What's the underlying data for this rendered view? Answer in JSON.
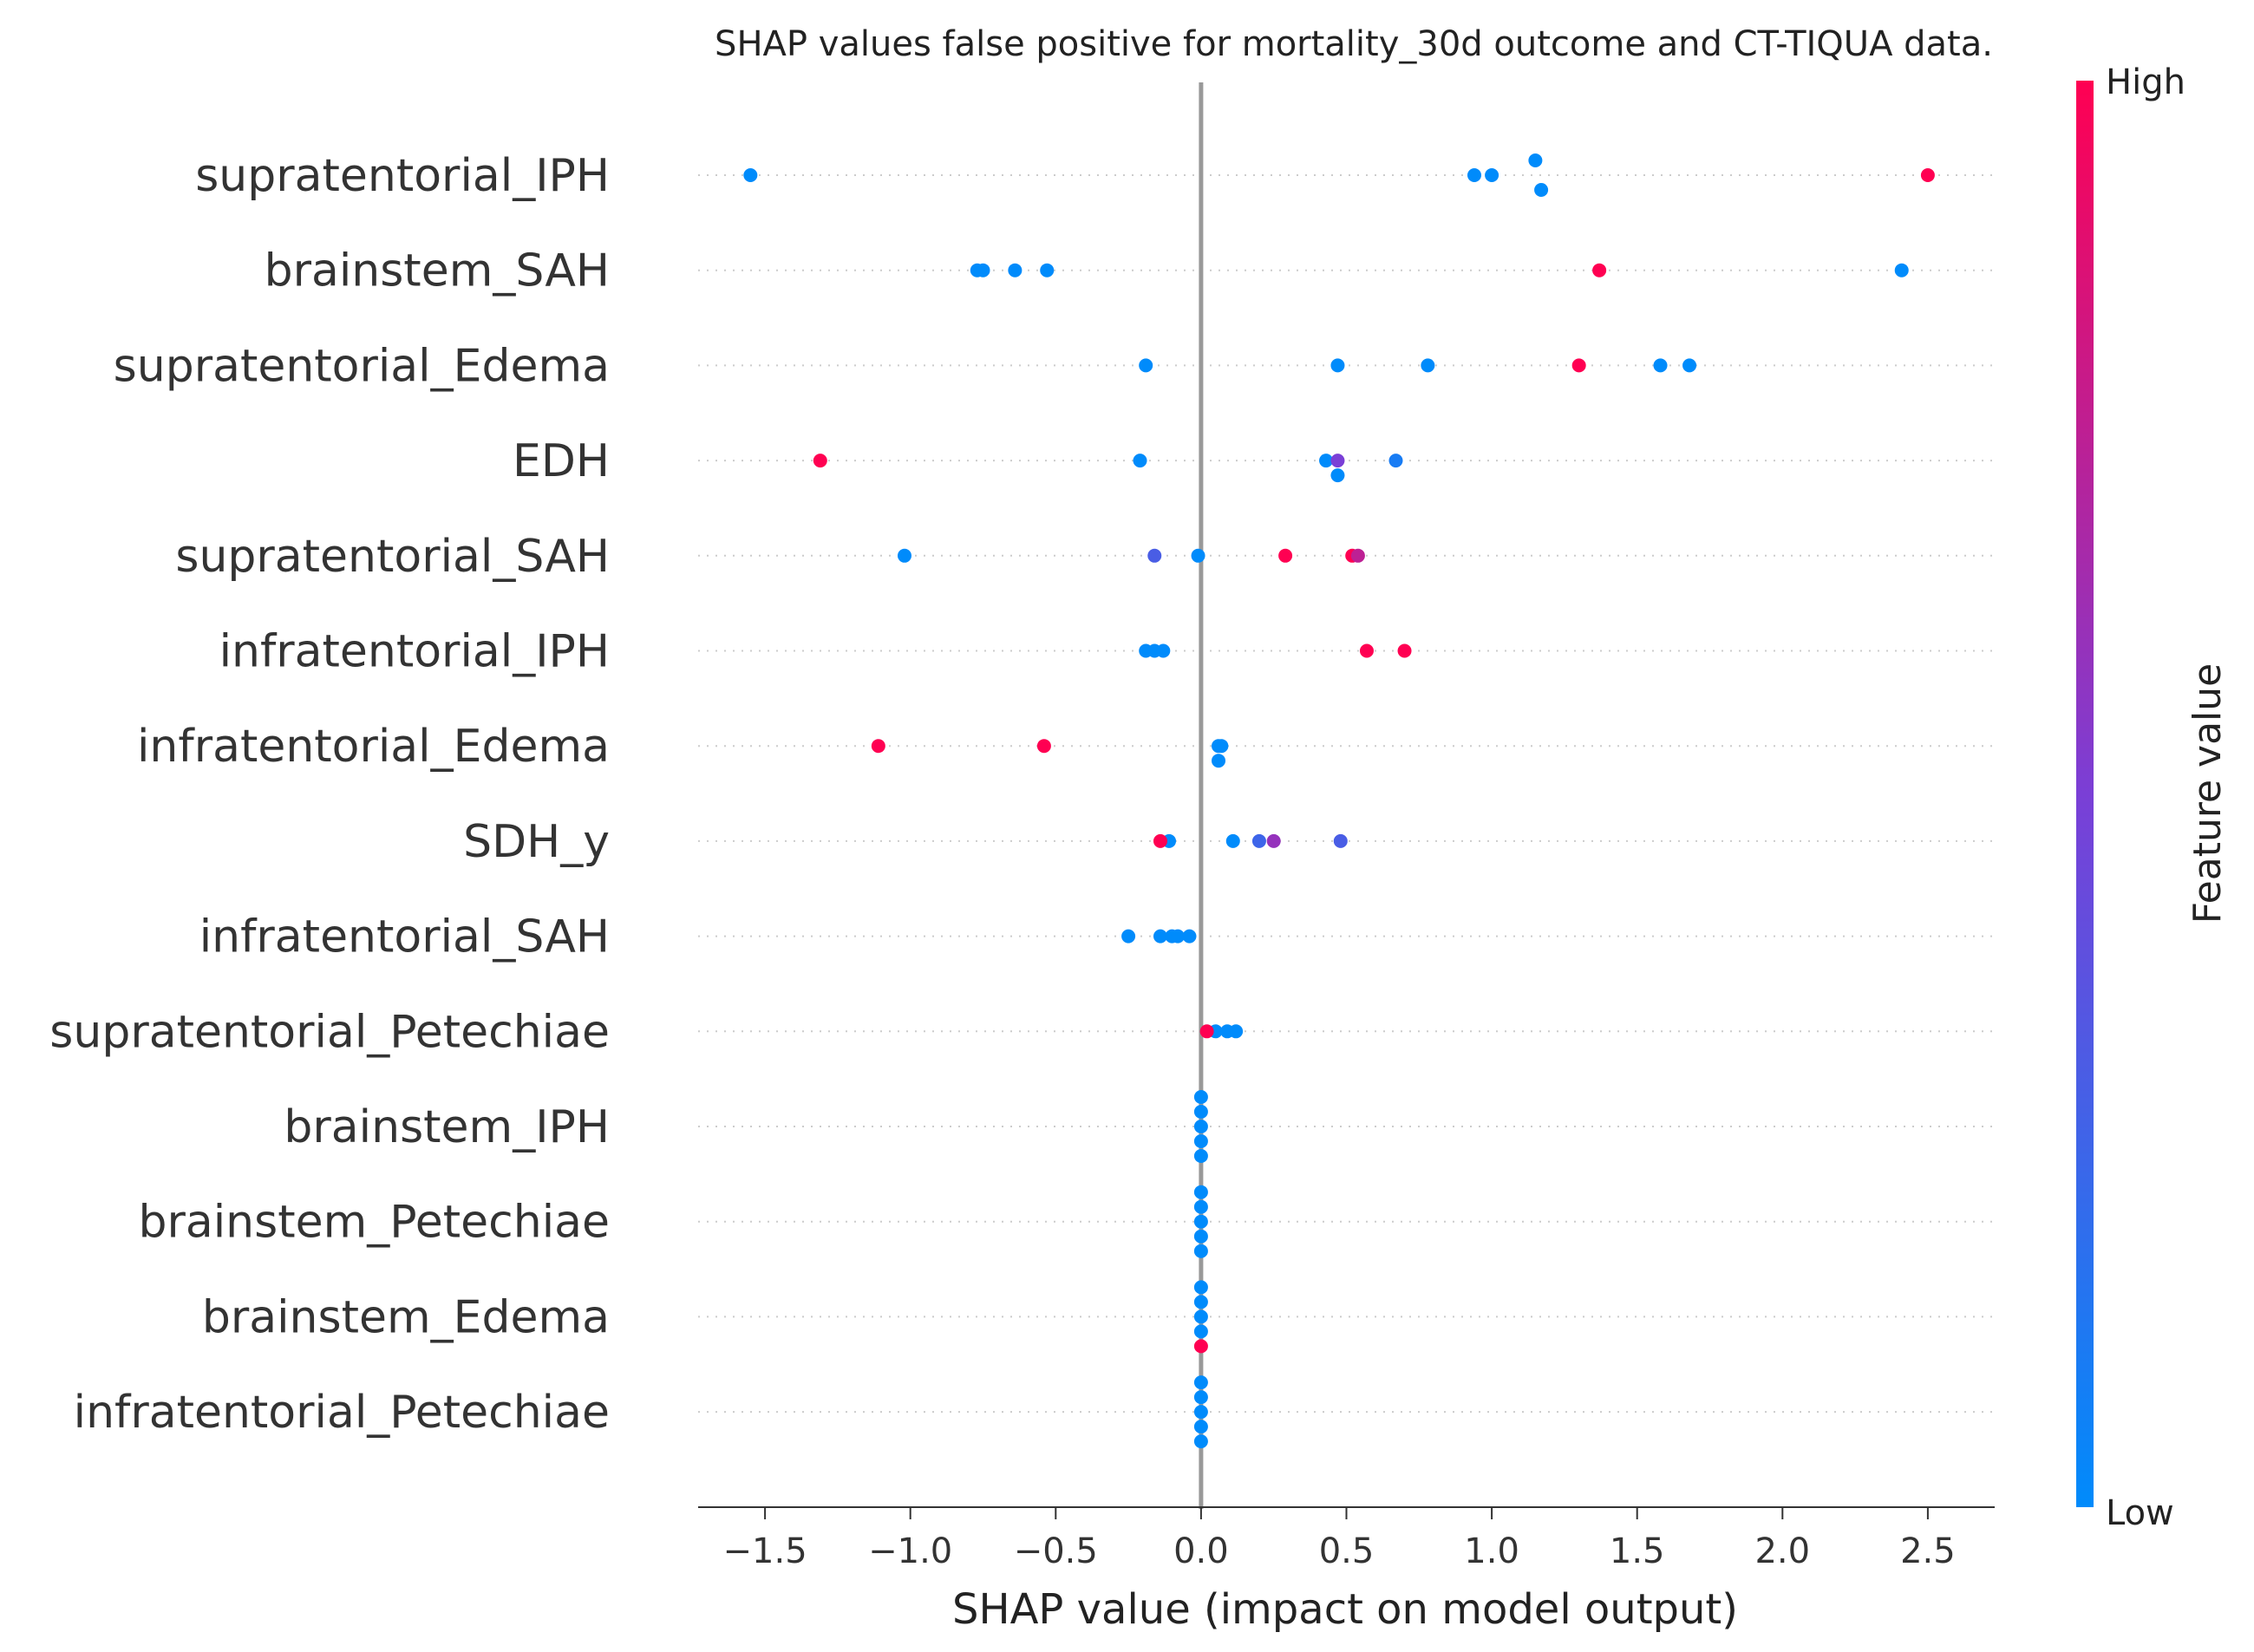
{
  "chart_data": {
    "type": "scatter",
    "title": "SHAP values false positive for mortality_30d outcome and CT-TIQUA data.",
    "xlabel": "SHAP value (impact on model output)",
    "xlim": [
      -1.73,
      2.73
    ],
    "xticks": [
      -1.5,
      -1.0,
      -0.5,
      0.0,
      0.5,
      1.0,
      1.5,
      2.0,
      2.5
    ],
    "xtick_labels": [
      "−1.5",
      "−1.0",
      "−0.5",
      "0.0",
      "0.5",
      "1.0",
      "1.5",
      "2.0",
      "2.5"
    ],
    "grid": false,
    "colorbar": {
      "label": "Feature value",
      "high_label": "High",
      "low_label": "Low",
      "high_color": "#ff0052",
      "mid_color": "#7a3fd6",
      "low_color": "#008bfb"
    },
    "features": [
      {
        "name": "supratentorial_IPH",
        "points": [
          {
            "x": -1.55,
            "v": 0
          },
          {
            "x": 0.94,
            "v": 0
          },
          {
            "x": 1.0,
            "v": 0
          },
          {
            "x": 1.15,
            "v": 0,
            "o": -1
          },
          {
            "x": 1.17,
            "v": 0,
            "o": 1
          },
          {
            "x": 2.5,
            "v": 1
          }
        ]
      },
      {
        "name": "brainstem_SAH",
        "points": [
          {
            "x": -0.77,
            "v": 0
          },
          {
            "x": -0.75,
            "v": 0
          },
          {
            "x": -0.64,
            "v": 0
          },
          {
            "x": -0.53,
            "v": 0
          },
          {
            "x": 1.37,
            "v": 1
          },
          {
            "x": 2.41,
            "v": 0
          }
        ]
      },
      {
        "name": "supratentorial_Edema",
        "points": [
          {
            "x": -0.19,
            "v": 0
          },
          {
            "x": 0.47,
            "v": 0
          },
          {
            "x": 0.78,
            "v": 0
          },
          {
            "x": 1.3,
            "v": 1
          },
          {
            "x": 1.58,
            "v": 0
          },
          {
            "x": 1.68,
            "v": 0
          }
        ]
      },
      {
        "name": "EDH",
        "points": [
          {
            "x": -1.31,
            "v": 1
          },
          {
            "x": -0.21,
            "v": 0
          },
          {
            "x": 0.43,
            "v": 0
          },
          {
            "x": 0.47,
            "v": 0,
            "o": 1
          },
          {
            "x": 0.47,
            "v": 0.5
          },
          {
            "x": 0.67,
            "v": 0.1
          }
        ]
      },
      {
        "name": "supratentorial_SAH",
        "points": [
          {
            "x": -1.02,
            "v": 0
          },
          {
            "x": -0.16,
            "v": 0.3
          },
          {
            "x": -0.01,
            "v": 0
          },
          {
            "x": 0.29,
            "v": 1
          },
          {
            "x": 0.52,
            "v": 1
          },
          {
            "x": 0.54,
            "v": 0.75
          }
        ]
      },
      {
        "name": "infratentorial_IPH",
        "points": [
          {
            "x": -0.19,
            "v": 0
          },
          {
            "x": -0.16,
            "v": 0
          },
          {
            "x": -0.13,
            "v": 0
          },
          {
            "x": 0.57,
            "v": 1
          },
          {
            "x": 0.7,
            "v": 1
          }
        ]
      },
      {
        "name": "infratentorial_Edema",
        "points": [
          {
            "x": -1.11,
            "v": 1
          },
          {
            "x": -0.54,
            "v": 1
          },
          {
            "x": 0.06,
            "v": 0,
            "o": 1
          },
          {
            "x": 0.06,
            "v": 0
          },
          {
            "x": 0.07,
            "v": 0
          }
        ]
      },
      {
        "name": "SDH_y",
        "points": [
          {
            "x": -0.11,
            "v": 0
          },
          {
            "x": -0.14,
            "v": 1
          },
          {
            "x": 0.11,
            "v": 0
          },
          {
            "x": 0.2,
            "v": 0.25
          },
          {
            "x": 0.25,
            "v": 0.6
          },
          {
            "x": 0.48,
            "v": 0.3
          }
        ]
      },
      {
        "name": "infratentorial_SAH",
        "points": [
          {
            "x": -0.25,
            "v": 0
          },
          {
            "x": -0.14,
            "v": 0
          },
          {
            "x": -0.1,
            "v": 0
          },
          {
            "x": -0.08,
            "v": 0
          },
          {
            "x": -0.04,
            "v": 0
          }
        ]
      },
      {
        "name": "supratentorial_Petechiae",
        "points": [
          {
            "x": 0.05,
            "v": 0
          },
          {
            "x": 0.09,
            "v": 0
          },
          {
            "x": 0.12,
            "v": 0
          },
          {
            "x": 0.02,
            "v": 1
          }
        ]
      },
      {
        "name": "brainstem_IPH",
        "points": [
          {
            "x": 0.0,
            "v": 0,
            "o": -2
          },
          {
            "x": 0.0,
            "v": 0,
            "o": -1
          },
          {
            "x": 0.0,
            "v": 0,
            "o": 0
          },
          {
            "x": 0.0,
            "v": 0,
            "o": 1
          },
          {
            "x": 0.0,
            "v": 0,
            "o": 2
          }
        ]
      },
      {
        "name": "brainstem_Petechiae",
        "points": [
          {
            "x": 0.0,
            "v": 0,
            "o": -2
          },
          {
            "x": 0.0,
            "v": 0,
            "o": -1
          },
          {
            "x": 0.0,
            "v": 0,
            "o": 0
          },
          {
            "x": 0.0,
            "v": 0,
            "o": 1
          },
          {
            "x": 0.0,
            "v": 0,
            "o": 2
          }
        ]
      },
      {
        "name": "brainstem_Edema",
        "points": [
          {
            "x": 0.0,
            "v": 0,
            "o": -2
          },
          {
            "x": 0.0,
            "v": 0,
            "o": -1
          },
          {
            "x": 0.0,
            "v": 0,
            "o": 0
          },
          {
            "x": 0.0,
            "v": 0,
            "o": 1
          },
          {
            "x": 0.0,
            "v": 1,
            "o": 2
          }
        ]
      },
      {
        "name": "infratentorial_Petechiae",
        "points": [
          {
            "x": 0.0,
            "v": 0,
            "o": -2
          },
          {
            "x": 0.0,
            "v": 0,
            "o": -1
          },
          {
            "x": 0.0,
            "v": 0,
            "o": 0
          },
          {
            "x": 0.0,
            "v": 0,
            "o": 1
          },
          {
            "x": 0.0,
            "v": 0,
            "o": 2
          }
        ]
      }
    ]
  }
}
